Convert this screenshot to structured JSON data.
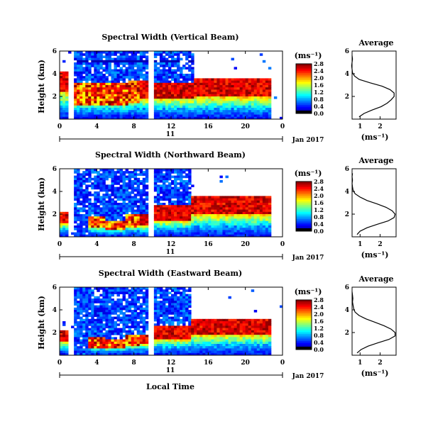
{
  "figure": {
    "xlabel": "Local Time",
    "date_label": "Jan 2017",
    "day_label": "11"
  },
  "colorbar_unit": "(ms⁻¹)",
  "average_xlabel": "(ms⁻¹)",
  "chart_data": [
    {
      "type": "heatmap",
      "title": "Spectral Width (Vertical Beam)",
      "ylabel": "Height (km)",
      "x_ticks": [
        "0",
        "4",
        "8",
        "12",
        "16",
        "20",
        "0"
      ],
      "y_ticks": [
        "2",
        "4",
        "6"
      ],
      "xlim": [
        0,
        24
      ],
      "ylim": [
        0,
        6
      ],
      "colorbar": {
        "ticks": [
          "0.0",
          "0.4",
          "0.8",
          "1.2",
          "1.6",
          "2.0",
          "2.4",
          "2.8"
        ],
        "range": [
          0,
          2.8
        ]
      },
      "gap_hours": [
        9.4,
        10.2
      ],
      "top_hours": [
        [
          0,
          0.8
        ],
        [
          1.6,
          4.6
        ],
        [
          4.6,
          7.4
        ],
        [
          7.4,
          9.4
        ],
        [
          10.2,
          14.6
        ],
        [
          14.6,
          22.8
        ]
      ],
      "top_heights": [
        4.3,
        3.1,
        3.1,
        3.4,
        3.3,
        3.5
      ],
      "profile": {
        "title": "Average",
        "x_ticks": [
          "1",
          "2"
        ],
        "y_ticks": [
          "2",
          "4",
          "6"
        ],
        "xlim": [
          0.6,
          2.8
        ],
        "ylim": [
          0,
          6
        ],
        "height": [
          0.2,
          0.5,
          0.8,
          1.1,
          1.4,
          1.7,
          2.0,
          2.3,
          2.6,
          2.9,
          3.2,
          3.5,
          3.8,
          4.1,
          4.4,
          4.7,
          5.0,
          5.3,
          5.6
        ],
        "width": [
          0.95,
          1.2,
          1.6,
          2.05,
          2.35,
          2.55,
          2.7,
          2.7,
          2.5,
          2.1,
          1.5,
          0.95,
          0.72,
          0.62,
          0.6,
          0.58,
          0.6,
          0.62,
          0.6
        ]
      }
    },
    {
      "type": "heatmap",
      "title": "Spectral Width (Northward Beam)",
      "ylabel": "Height (km)",
      "x_ticks": [
        "0",
        "4",
        "8",
        "12",
        "16",
        "20",
        "0"
      ],
      "y_ticks": [
        "2",
        "4",
        "6"
      ],
      "xlim": [
        0,
        24
      ],
      "ylim": [
        0,
        6
      ],
      "colorbar": {
        "ticks": [
          "0.0",
          "0.4",
          "0.8",
          "1.2",
          "1.6",
          "2.0",
          "2.4",
          "2.8"
        ],
        "range": [
          0,
          2.8
        ]
      },
      "gap_hours": [
        9.4,
        10.2
      ],
      "top_hours": [
        [
          0,
          0.8
        ],
        [
          3.2,
          4.8
        ],
        [
          4.8,
          7.2
        ],
        [
          7.2,
          9.4
        ],
        [
          10.2,
          14.2
        ],
        [
          14.2,
          22.8
        ]
      ],
      "top_heights": [
        2.2,
        1.8,
        1.5,
        2.0,
        2.7,
        3.5
      ],
      "profile": {
        "title": "Average",
        "x_ticks": [
          "1",
          "2"
        ],
        "y_ticks": [
          "2",
          "4",
          "6"
        ],
        "xlim": [
          0.6,
          2.8
        ],
        "ylim": [
          0,
          6
        ],
        "height": [
          0.2,
          0.5,
          0.8,
          1.1,
          1.4,
          1.7,
          2.0,
          2.3,
          2.6,
          2.9,
          3.2,
          3.5,
          3.8,
          4.1,
          4.4,
          4.7,
          5.0,
          5.3,
          5.6
        ],
        "width": [
          0.85,
          1.0,
          1.35,
          1.85,
          2.4,
          2.7,
          2.75,
          2.6,
          2.3,
          1.85,
          1.35,
          1.0,
          0.75,
          0.65,
          0.62,
          0.6,
          0.62,
          0.6,
          0.62
        ]
      }
    },
    {
      "type": "heatmap",
      "title": "Spectral Width (Eastward Beam)",
      "ylabel": "Height (km)",
      "x_ticks": [
        "0",
        "4",
        "8",
        "12",
        "16",
        "20",
        "0"
      ],
      "y_ticks": [
        "2",
        "4",
        "6"
      ],
      "xlim": [
        0,
        24
      ],
      "ylim": [
        0,
        6
      ],
      "colorbar": {
        "ticks": [
          "0.0",
          "0.4",
          "0.8",
          "1.2",
          "1.6",
          "2.0",
          "2.4",
          "2.8"
        ],
        "range": [
          0,
          2.8
        ]
      },
      "gap_hours": [
        9.4,
        10.2
      ],
      "top_hours": [
        [
          0,
          0.8
        ],
        [
          3.2,
          4.8
        ],
        [
          4.8,
          7.2
        ],
        [
          7.2,
          9.4
        ],
        [
          10.2,
          14.2
        ],
        [
          14.2,
          22.8
        ]
      ],
      "top_heights": [
        2.2,
        1.7,
        1.4,
        1.9,
        2.6,
        3.3
      ],
      "profile": {
        "title": "Average",
        "x_ticks": [
          "1",
          "2"
        ],
        "y_ticks": [
          "2",
          "4",
          "6"
        ],
        "xlim": [
          0.6,
          2.8
        ],
        "ylim": [
          0,
          6
        ],
        "height": [
          0.2,
          0.5,
          0.8,
          1.1,
          1.4,
          1.7,
          2.0,
          2.3,
          2.6,
          2.9,
          3.2,
          3.5,
          3.8,
          4.1,
          4.4,
          4.7,
          5.0,
          5.3,
          5.6
        ],
        "width": [
          0.85,
          1.05,
          1.4,
          1.9,
          2.45,
          2.75,
          2.75,
          2.55,
          2.2,
          1.75,
          1.3,
          0.95,
          0.75,
          0.68,
          0.65,
          0.62,
          0.64,
          0.62,
          0.6
        ]
      }
    }
  ]
}
